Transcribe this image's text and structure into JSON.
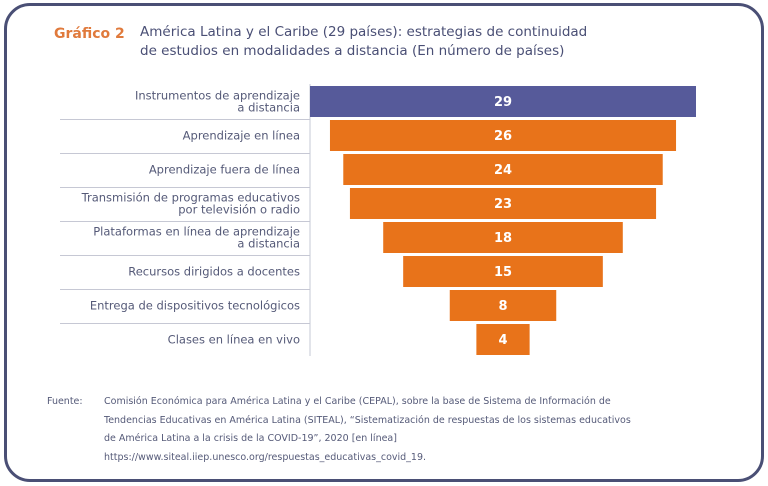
{
  "figure": {
    "label": "Gráfico 2",
    "title_line1": "América Latina y el Caribe (29 países): estrategias de continuidad",
    "title_line2": "de estudios en modalidades a distancia (En número de países)"
  },
  "chart_data": {
    "type": "bar",
    "orientation": "horizontal",
    "title": "América Latina y el Caribe (29 países): estrategias de continuidad de estudios en modalidades a distancia (En número de países)",
    "categories": [
      [
        "Instrumentos de aprendizaje",
        "a distancia"
      ],
      [
        "Aprendizaje en línea"
      ],
      [
        "Aprendizaje fuera de línea"
      ],
      [
        "Transmisión de programas educativos",
        "por televisión o radio"
      ],
      [
        "Plataformas en línea de aprendizaje",
        "a distancia"
      ],
      [
        "Recursos dirigidos a docentes"
      ],
      [
        "Entrega de dispositivos tecnológicos"
      ],
      [
        "Clases en línea en vivo"
      ]
    ],
    "values": [
      29,
      26,
      24,
      23,
      18,
      15,
      8,
      4
    ],
    "colors": [
      "#565a9a",
      "#e8731a",
      "#e8731a",
      "#e8731a",
      "#e8731a",
      "#e8731a",
      "#e8731a",
      "#e8731a"
    ],
    "xlim": [
      0,
      29
    ],
    "xlabel": "",
    "ylabel": ""
  },
  "source": {
    "label": "Fuente:",
    "lines": [
      "Comisión Económica para América Latina y el Caribe (CEPAL), sobre la base de Sistema de Información de",
      "Tendencias Educativas en América Latina (SITEAL), “Sistematización de respuestas de los sistemas educativos",
      "de América Latina a la crisis de la COVID-19”, 2020 [en línea]",
      "https://www.siteal.iiep.unesco.org/respuestas_educativas_covid_19."
    ]
  }
}
